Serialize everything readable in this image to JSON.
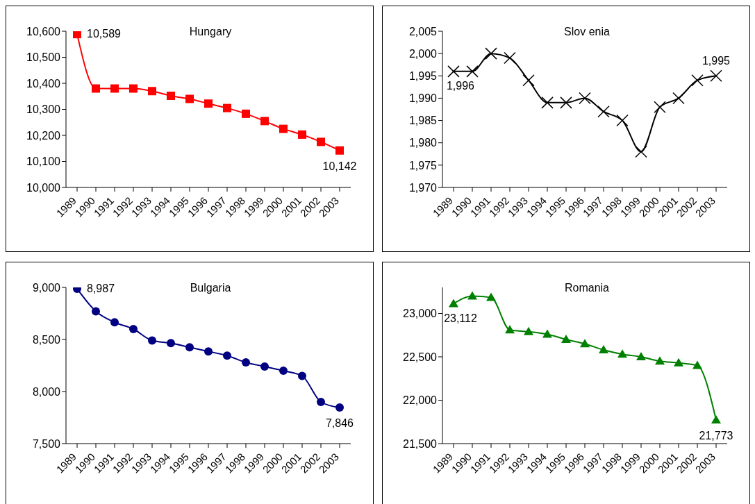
{
  "chart_data": [
    {
      "type": "line",
      "title": "Hungary",
      "categories": [
        "1989",
        "1990",
        "1991",
        "1992",
        "1993",
        "1994",
        "1995",
        "1996",
        "1997",
        "1998",
        "1999",
        "2000",
        "2001",
        "2002",
        "2003"
      ],
      "marker": "square",
      "ylim": [
        10000,
        10600
      ],
      "yticks": [
        {
          "value": 10000,
          "label": "10,000"
        },
        {
          "value": 10100,
          "label": "10,100"
        },
        {
          "value": 10200,
          "label": "10,200"
        },
        {
          "value": 10300,
          "label": "10,300"
        },
        {
          "value": 10400,
          "label": "10,400"
        },
        {
          "value": 10500,
          "label": "10,500"
        },
        {
          "value": 10600,
          "label": "10,600"
        }
      ],
      "series": [
        {
          "color": "#ff0000",
          "values": [
            10589,
            10380,
            10380,
            10380,
            10370,
            10352,
            10340,
            10322,
            10305,
            10283,
            10255,
            10225,
            10203,
            10175,
            10142
          ],
          "value_labels": [
            "10,589",
            null,
            null,
            null,
            null,
            null,
            null,
            null,
            null,
            null,
            null,
            null,
            null,
            null,
            "10,142"
          ]
        }
      ]
    },
    {
      "type": "line",
      "title": "Slov enia",
      "categories": [
        "1989",
        "1990",
        "1991",
        "1992",
        "1993",
        "1994",
        "1995",
        "1996",
        "1997",
        "1998",
        "1999",
        "2000",
        "2001",
        "2002",
        "2003"
      ],
      "marker": "cross",
      "ylim": [
        1970,
        2005
      ],
      "yticks": [
        {
          "value": 1970,
          "label": "1,970"
        },
        {
          "value": 1975,
          "label": "1,975"
        },
        {
          "value": 1980,
          "label": "1,980"
        },
        {
          "value": 1985,
          "label": "1,985"
        },
        {
          "value": 1990,
          "label": "1,990"
        },
        {
          "value": 1995,
          "label": "1,995"
        },
        {
          "value": 2000,
          "label": "2,000"
        },
        {
          "value": 2005,
          "label": "2,005"
        }
      ],
      "series": [
        {
          "color": "#000000",
          "values": [
            1996,
            1996,
            2000,
            1999,
            1994,
            1989,
            1989,
            1990,
            1987,
            1985,
            1978,
            1988,
            1990,
            1994,
            1995
          ],
          "value_labels": [
            "1,996",
            null,
            null,
            null,
            null,
            null,
            null,
            null,
            null,
            null,
            null,
            null,
            null,
            null,
            "1,995"
          ]
        }
      ]
    },
    {
      "type": "line",
      "title": "Bulgaria",
      "categories": [
        "1989",
        "1990",
        "1991",
        "1992",
        "1993",
        "1994",
        "1995",
        "1996",
        "1997",
        "1998",
        "1999",
        "2000",
        "2001",
        "2002",
        "2003"
      ],
      "marker": "circle",
      "ylim": [
        7500,
        9000
      ],
      "yticks": [
        {
          "value": 7500,
          "label": "7,500"
        },
        {
          "value": 8000,
          "label": "8,000"
        },
        {
          "value": 8500,
          "label": "8,500"
        },
        {
          "value": 9000,
          "label": "9,000"
        }
      ],
      "series": [
        {
          "color": "#000080",
          "values": [
            8987,
            8770,
            8665,
            8600,
            8490,
            8465,
            8425,
            8385,
            8345,
            8280,
            8240,
            8200,
            8150,
            7900,
            7846
          ],
          "value_labels": [
            "8,987",
            null,
            null,
            null,
            null,
            null,
            null,
            null,
            null,
            null,
            null,
            null,
            null,
            null,
            "7,846"
          ]
        }
      ]
    },
    {
      "type": "line",
      "title": "Romania",
      "categories": [
        "1989",
        "1990",
        "1991",
        "1992",
        "1993",
        "1994",
        "1995",
        "1996",
        "1997",
        "1998",
        "1999",
        "2000",
        "2001",
        "2002",
        "2003"
      ],
      "marker": "triangle",
      "ylim": [
        21500,
        23300
      ],
      "yticks": [
        {
          "value": 21500,
          "label": "21,500"
        },
        {
          "value": 22000,
          "label": "22,000"
        },
        {
          "value": 22500,
          "label": "22,500"
        },
        {
          "value": 23000,
          "label": "23,000"
        }
      ],
      "series": [
        {
          "color": "#008000",
          "values": [
            23112,
            23200,
            23185,
            22810,
            22790,
            22760,
            22700,
            22650,
            22580,
            22530,
            22500,
            22450,
            22430,
            22400,
            21773
          ],
          "value_labels": [
            "23,112",
            null,
            null,
            null,
            null,
            null,
            null,
            null,
            null,
            null,
            null,
            null,
            null,
            null,
            "21,773"
          ]
        }
      ]
    }
  ]
}
